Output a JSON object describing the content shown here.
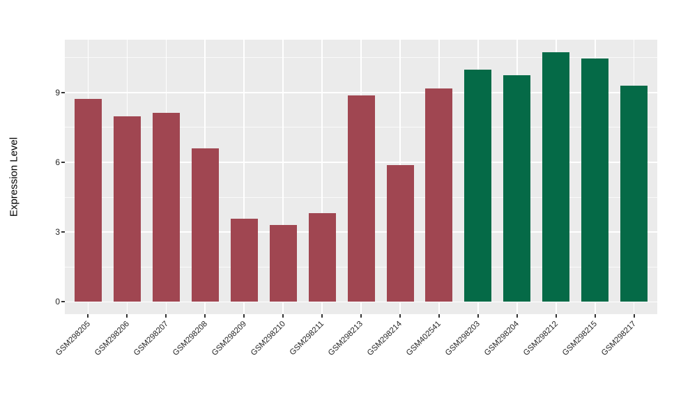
{
  "chart_data": {
    "type": "bar",
    "title": "",
    "xlabel": "",
    "ylabel": "Expression Level",
    "categories": [
      "GSM298205",
      "GSM298206",
      "GSM298207",
      "GSM298208",
      "GSM298209",
      "GSM298210",
      "GSM298211",
      "GSM298213",
      "GSM298214",
      "GSM402541",
      "GSM298203",
      "GSM298204",
      "GSM298212",
      "GSM298215",
      "GSM298217"
    ],
    "values": [
      8.71,
      7.99,
      8.11,
      6.6,
      3.57,
      3.32,
      3.82,
      8.87,
      5.87,
      9.17,
      9.97,
      9.75,
      10.72,
      10.45,
      9.29
    ],
    "bar_groups": [
      "red",
      "red",
      "red",
      "red",
      "red",
      "red",
      "red",
      "red",
      "red",
      "red",
      "green",
      "green",
      "green",
      "green",
      "green"
    ],
    "yticks": [
      0,
      3,
      6,
      9
    ],
    "ytick_labels": [
      "0",
      "3",
      "6",
      "9"
    ],
    "yticks_minor": [
      1.5,
      4.5,
      7.5,
      10.5
    ],
    "ylim": [
      -0.54,
      11.27
    ],
    "grid": "on",
    "legend": "none",
    "colors": {
      "red": "#A04651",
      "green": "#056A47",
      "panel_background": "#EBEBEB",
      "gridline_major": "#FFFFFF",
      "gridline_minor": "#FFFFFF",
      "tick_mark": "#333333"
    }
  }
}
